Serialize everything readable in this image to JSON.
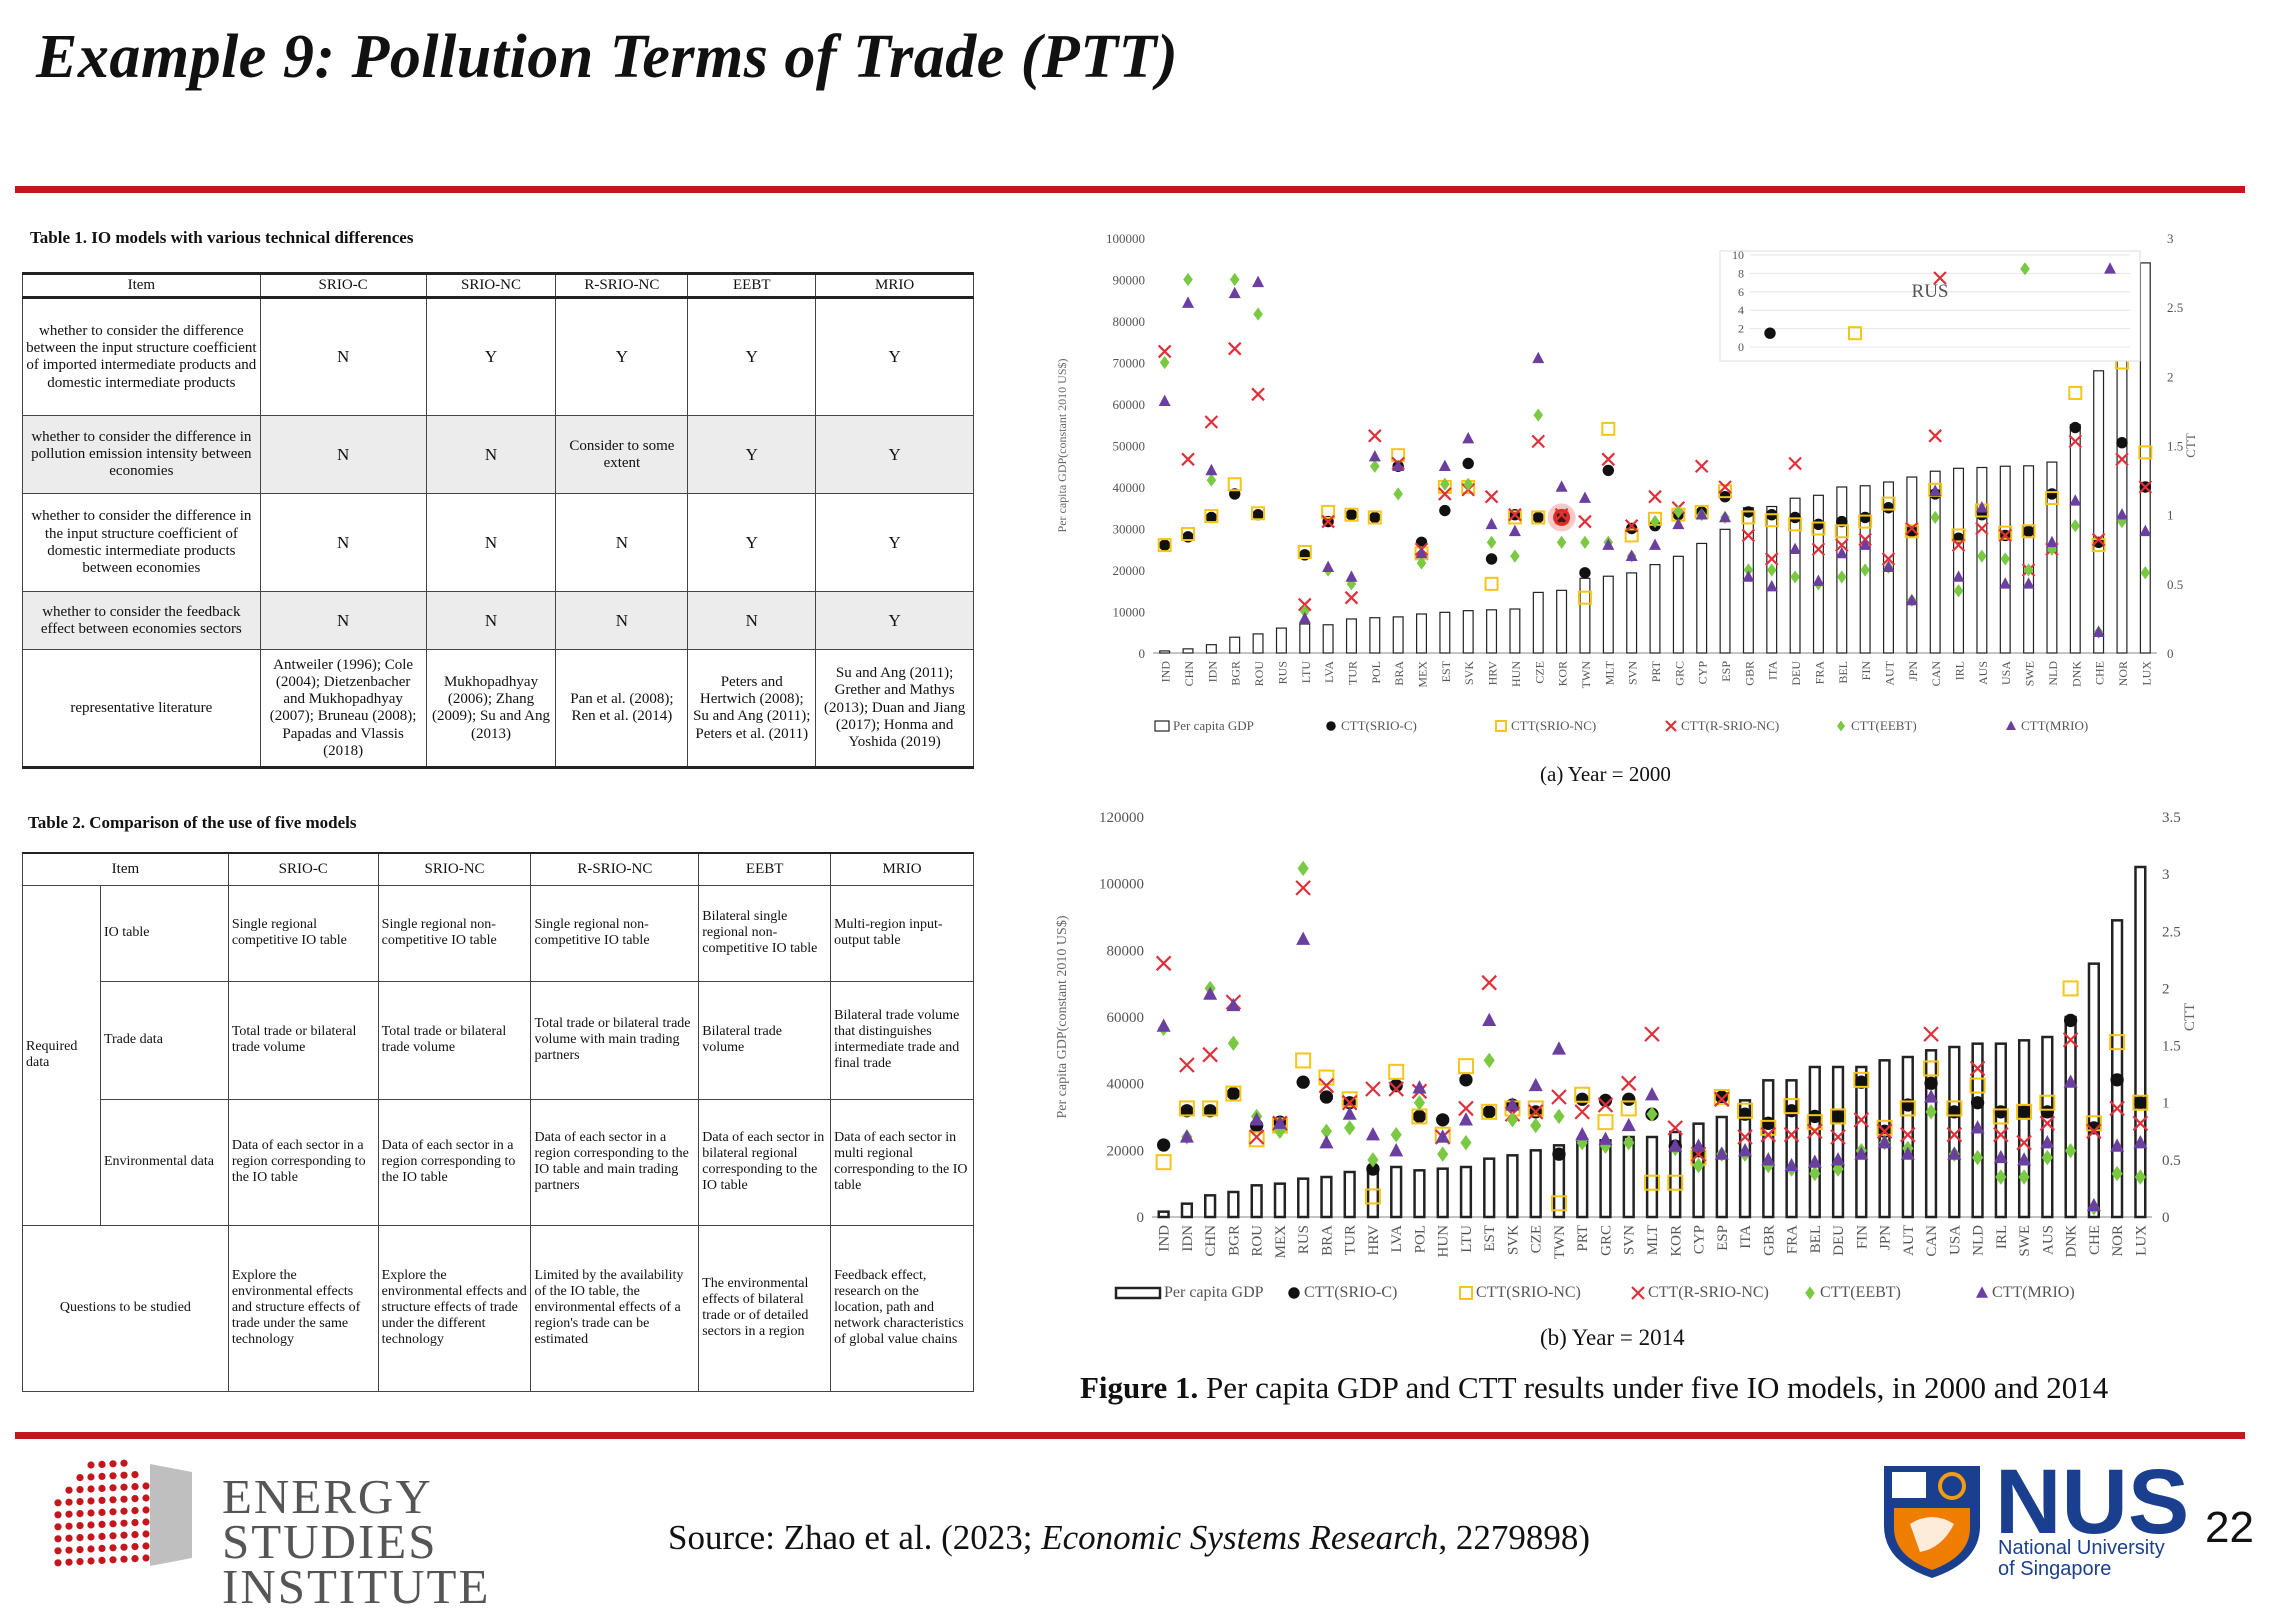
{
  "slide": {
    "title": "Example 9: Pollution Terms of Trade (PTT)",
    "page_number": "22",
    "source_prefix": "Source: Zhao et al. (2023; ",
    "source_journal": "Economic Systems Research",
    "source_suffix": ", 2279898)",
    "colors": {
      "rule": "#c4161c",
      "nus_blue": "#1b3f8f"
    }
  },
  "logos": {
    "esi": "ENERGY STUDIES INSTITUTE",
    "nus": "NUS",
    "nus_subtitle_1": "National University",
    "nus_subtitle_2": "of Singapore"
  },
  "table1": {
    "caption": "Table 1. IO models with various technical differences",
    "headers": [
      "Item",
      "SRIO-C",
      "SRIO-NC",
      "R-SRIO-NC",
      "EEBT",
      "MRIO"
    ],
    "rows": [
      [
        "whether to consider the difference between the input structure coefficient of imported intermediate products and domestic intermediate products",
        "N",
        "Y",
        "Y",
        "Y",
        "Y"
      ],
      [
        "whether to consider the difference in pollution emission intensity between economies",
        "N",
        "N",
        "Consider to some extent",
        "Y",
        "Y"
      ],
      [
        "whether to consider the difference in the input structure coefficient of domestic intermediate products between economies",
        "N",
        "N",
        "N",
        "Y",
        "Y"
      ],
      [
        "whether to consider the feedback effect between economies sectors",
        "N",
        "N",
        "N",
        "N",
        "Y"
      ],
      [
        "representative literature",
        "Antweiler (1996); Cole (2004); Dietzenbacher and Mukhopadhyay (2007); Bruneau (2008); Papadas and Vlassis (2018)",
        "Mukhopadhyay (2006); Zhang (2009); Su and Ang (2013)",
        "Pan et al. (2008); Ren et al. (2014)",
        "Peters and Hertwich (2008); Su and Ang (2011); Peters et al. (2011)",
        "Su and Ang (2011); Grether and Mathys (2013); Duan and Jiang (2017); Honma and Yoshida (2019)"
      ]
    ]
  },
  "table2": {
    "caption": "Table 2. Comparison of the use of five models",
    "headers": [
      "Item",
      "SRIO-C",
      "SRIO-NC",
      "R-SRIO-NC",
      "EEBT",
      "MRIO"
    ],
    "group_label": "Required data",
    "rows": [
      {
        "label": "IO table",
        "cells": [
          "Single regional competitive IO table",
          "Single regional non-competitive IO table",
          "Single regional non-competitive IO table",
          "Bilateral single regional non-competitive IO table",
          "Multi-region input-output table"
        ]
      },
      {
        "label": "Trade data",
        "cells": [
          "Total trade or bilateral trade volume",
          "Total trade or bilateral trade volume",
          "Total trade or bilateral trade volume with main trading partners",
          "Bilateral trade volume",
          "Bilateral trade volume that distinguishes intermediate trade and final trade"
        ]
      },
      {
        "label": "Environmental data",
        "cells": [
          "Data of each sector in a region corresponding to the IO table",
          "Data of each sector in a region corresponding to the IO table",
          "Data of each sector in a region corresponding to the IO table and main trading partners",
          "Data of each sector in bilateral regional corresponding to the IO table",
          "Data of each sector in multi regional corresponding to the IO table"
        ]
      }
    ],
    "questions_label": "Questions to be studied",
    "questions": [
      "Explore the environmental effects and structure effects of trade under the same technology",
      "Explore the environmental effects and structure effects of trade under the different technology",
      "Limited by the availability of the IO table, the environmental effects of a region's trade can be estimated",
      "The environmental effects of bilateral trade or of detailed sectors in a region",
      "Feedback effect, research on the location, path and network characteristics of global value chains"
    ]
  },
  "figure": {
    "caption_bold": "Figure 1.",
    "caption_rest": " Per capita GDP and CTT results under five IO models, in 2000 and 2014",
    "subcaption_a": "(a)  Year = 2000",
    "subcaption_b": "(b)  Year = 2014",
    "inset_label": "RUS"
  },
  "chart_data": [
    {
      "type": "bar",
      "title": "",
      "ylabel": "Per capita GDP(constant 2010 US$)",
      "y2label": "CTT",
      "ylim": [
        0,
        100000
      ],
      "y2lim": [
        0,
        3
      ],
      "yticks": [
        "0",
        "10000",
        "20000",
        "30000",
        "40000",
        "50000",
        "60000",
        "70000",
        "80000",
        "90000",
        "100000"
      ],
      "y2ticks": [
        "0",
        "0.5",
        "1",
        "1.5",
        "2",
        "2.5",
        "3"
      ],
      "categories": [
        "IND",
        "CHN",
        "IDN",
        "BGR",
        "ROU",
        "RUS",
        "LTU",
        "LVA",
        "TUR",
        "POL",
        "BRA",
        "MEX",
        "EST",
        "SVK",
        "HRV",
        "HUN",
        "CZE",
        "KOR",
        "TWN",
        "MLT",
        "SVN",
        "PRT",
        "GRC",
        "CYP",
        "ESP",
        "GBR",
        "ITA",
        "DEU",
        "FRA",
        "BEL",
        "FIN",
        "AUT",
        "JPN",
        "CAN",
        "IRL",
        "AUS",
        "USA",
        "SWE",
        "NLD",
        "DNK",
        "CHE",
        "NOR",
        "LUX"
      ],
      "series": [
        {
          "name": "Per capita GDP",
          "kind": "bar",
          "values": [
            500,
            1000,
            2000,
            3800,
            4600,
            6000,
            7000,
            6800,
            8200,
            8500,
            8700,
            9400,
            9800,
            10200,
            10400,
            10600,
            14600,
            15100,
            18000,
            18500,
            19300,
            21300,
            23300,
            26400,
            29800,
            35000,
            35300,
            37300,
            38000,
            40000,
            40300,
            41200,
            42400,
            43800,
            44500,
            44700,
            45000,
            45100,
            46000,
            55000,
            68000,
            82000,
            94000
          ]
        },
        {
          "name": "CTT(SRIO-C)",
          "kind": "dot",
          "color": "#111111",
          "values": [
            0.78,
            0.84,
            0.98,
            1.15,
            1.0,
            0.0,
            0.71,
            0.95,
            1.0,
            0.98,
            1.35,
            0.8,
            1.03,
            1.37,
            0.68,
            1.0,
            0.98,
            0.98,
            0.58,
            1.32,
            0.9,
            0.92,
            1.0,
            1.02,
            1.13,
            1.02,
            1.0,
            0.98,
            0.93,
            0.95,
            0.98,
            1.05,
            0.88,
            1.15,
            0.83,
            1.0,
            0.85,
            0.88,
            1.15,
            1.63,
            0.8,
            1.52,
            1.2
          ]
        },
        {
          "name": "CTT(SRIO-NC)",
          "kind": "square",
          "color": "#f5c518",
          "values": [
            0.78,
            0.86,
            0.99,
            1.22,
            1.01,
            0.0,
            0.73,
            1.02,
            1.0,
            0.98,
            1.43,
            0.72,
            1.2,
            1.2,
            0.5,
            0.98,
            0.98,
            0.98,
            0.4,
            1.62,
            0.85,
            0.97,
            1.0,
            1.02,
            1.17,
            0.98,
            0.96,
            0.93,
            0.9,
            0.88,
            0.95,
            1.08,
            0.88,
            1.18,
            0.85,
            1.03,
            0.87,
            0.88,
            1.12,
            1.88,
            0.78,
            2.1,
            1.45
          ]
        },
        {
          "name": "CTT(R-SRIO-NC)",
          "kind": "cross",
          "color": "#e0303a",
          "values": [
            2.18,
            1.4,
            1.67,
            2.2,
            1.87,
            0.0,
            0.35,
            0.95,
            0.4,
            1.57,
            1.37,
            0.75,
            1.15,
            1.18,
            1.13,
            1.0,
            1.53,
            1.0,
            0.95,
            1.4,
            0.92,
            1.13,
            1.05,
            1.35,
            1.2,
            0.85,
            0.68,
            1.37,
            0.75,
            0.78,
            0.82,
            0.68,
            0.9,
            1.57,
            0.78,
            0.9,
            0.85,
            0.6,
            0.75,
            1.53,
            0.82,
            1.4,
            1.2
          ]
        },
        {
          "name": "CTT(EEBT)",
          "kind": "diamond",
          "color": "#7ac943",
          "values": [
            2.1,
            2.7,
            1.25,
            2.7,
            2.45,
            0.0,
            0.3,
            0.6,
            0.5,
            1.35,
            1.15,
            0.65,
            1.22,
            1.22,
            0.8,
            0.7,
            1.72,
            0.8,
            0.8,
            0.8,
            0.7,
            0.95,
            1.02,
            1.0,
            0.98,
            0.6,
            0.6,
            0.55,
            0.5,
            0.55,
            0.6,
            0.62,
            0.38,
            0.98,
            0.45,
            0.7,
            0.68,
            0.6,
            0.75,
            0.92,
            0.15,
            0.95,
            0.58
          ]
        },
        {
          "name": "CTT(MRIO)",
          "kind": "triangle",
          "color": "#6b3fa0",
          "values": [
            1.82,
            2.53,
            1.32,
            2.6,
            2.68,
            0.0,
            0.25,
            0.62,
            0.55,
            1.42,
            1.35,
            0.72,
            1.35,
            1.55,
            0.93,
            0.88,
            2.13,
            1.2,
            1.12,
            0.78,
            0.7,
            0.78,
            0.93,
            1.0,
            0.98,
            0.55,
            0.48,
            0.75,
            0.52,
            0.72,
            0.78,
            0.62,
            0.38,
            1.17,
            0.55,
            1.05,
            0.5,
            0.5,
            0.8,
            1.1,
            0.15,
            1.0,
            0.88
          ]
        }
      ],
      "inset": {
        "category": "RUS",
        "ylim": [
          0,
          10
        ],
        "yticks": [
          "0",
          "2",
          "4",
          "6",
          "8",
          "10"
        ],
        "values": {
          "CTT(SRIO-C)": 1.5,
          "CTT(SRIO-NC)": 1.5,
          "CTT(R-SRIO-NC)": 7.5,
          "CTT(EEBT)": 8.5,
          "CTT(MRIO)": 8.5
        }
      }
    },
    {
      "type": "bar",
      "title": "",
      "ylabel": "Per capita GDP(constant 2010 US$)",
      "y2label": "CTT",
      "ylim": [
        0,
        120000
      ],
      "y2lim": [
        0,
        3.5
      ],
      "yticks": [
        "0",
        "20000",
        "40000",
        "60000",
        "80000",
        "100000",
        "120000"
      ],
      "y2ticks": [
        "0",
        "0.5",
        "1",
        "1.5",
        "2",
        "2.5",
        "3",
        "3.5"
      ],
      "categories": [
        "IND",
        "IDN",
        "CHN",
        "BGR",
        "ROU",
        "MEX",
        "RUS",
        "BRA",
        "TUR",
        "HRV",
        "LVA",
        "POL",
        "HUN",
        "LTU",
        "EST",
        "SVK",
        "CZE",
        "TWN",
        "PRT",
        "GRC",
        "SVN",
        "MLT",
        "KOR",
        "CYP",
        "ESP",
        "ITA",
        "GBR",
        "FRA",
        "BEL",
        "DEU",
        "FIN",
        "JPN",
        "AUT",
        "CAN",
        "USA",
        "NLD",
        "IRL",
        "SWE",
        "AUS",
        "DNK",
        "CHE",
        "NOR",
        "LUX"
      ],
      "series": [
        {
          "name": "Per capita GDP",
          "kind": "bar",
          "values": [
            1600,
            4000,
            6500,
            7500,
            9500,
            10000,
            11500,
            12000,
            13500,
            14000,
            15000,
            14000,
            14500,
            15000,
            17500,
            18500,
            20000,
            21500,
            22500,
            23000,
            24000,
            24000,
            25500,
            28000,
            30000,
            35000,
            41000,
            41000,
            45000,
            45000,
            45000,
            47000,
            48000,
            50000,
            51000,
            52000,
            52000,
            53000,
            54000,
            60000,
            76000,
            89000,
            105000
          ]
        },
        {
          "name": "CTT(SRIO-C)",
          "kind": "dot",
          "color": "#111111",
          "values": [
            0.63,
            0.93,
            0.93,
            1.08,
            0.8,
            0.83,
            1.18,
            1.05,
            1.0,
            0.42,
            1.15,
            0.88,
            0.85,
            1.2,
            0.92,
            0.98,
            0.92,
            0.55,
            1.03,
            1.02,
            1.03,
            0.9,
            0.62,
            0.58,
            1.05,
            0.9,
            0.82,
            0.93,
            0.88,
            0.88,
            1.18,
            0.75,
            0.98,
            1.17,
            0.92,
            1.0,
            0.92,
            0.92,
            0.92,
            1.72,
            0.78,
            1.2,
            1.0
          ]
        },
        {
          "name": "CTT(SRIO-NC)",
          "kind": "square",
          "color": "#f5c518",
          "values": [
            0.48,
            0.95,
            0.95,
            1.08,
            0.68,
            0.8,
            1.37,
            1.22,
            1.03,
            0.18,
            1.27,
            0.88,
            0.72,
            1.32,
            0.92,
            0.95,
            0.95,
            0.12,
            1.07,
            0.83,
            0.95,
            0.3,
            0.3,
            0.52,
            1.05,
            0.93,
            0.78,
            0.97,
            0.83,
            0.88,
            1.2,
            0.78,
            0.95,
            1.3,
            0.95,
            1.15,
            0.88,
            0.92,
            1.0,
            2.0,
            0.82,
            1.53,
            1.0
          ]
        },
        {
          "name": "CTT(R-SRIO-NC)",
          "kind": "cross",
          "color": "#e0303a",
          "values": [
            2.22,
            1.33,
            1.42,
            1.88,
            0.7,
            0.82,
            2.88,
            1.15,
            1.0,
            1.12,
            1.12,
            1.1,
            0.7,
            0.95,
            2.05,
            0.9,
            0.92,
            1.05,
            0.92,
            0.98,
            1.17,
            1.6,
            0.78,
            0.55,
            1.03,
            0.7,
            0.72,
            0.72,
            0.75,
            0.7,
            0.85,
            0.75,
            0.72,
            1.6,
            0.72,
            1.3,
            0.72,
            0.65,
            0.82,
            1.55,
            0.75,
            0.95,
            0.82
          ]
        },
        {
          "name": "CTT(EEBT)",
          "kind": "diamond",
          "color": "#7ac943",
          "values": [
            1.65,
            0.7,
            2.0,
            1.52,
            0.88,
            0.75,
            3.05,
            0.75,
            0.78,
            0.5,
            0.72,
            1.0,
            0.55,
            0.65,
            1.37,
            0.85,
            0.8,
            0.88,
            0.65,
            0.62,
            0.65,
            0.9,
            0.6,
            0.45,
            0.55,
            0.55,
            0.45,
            0.42,
            0.38,
            0.42,
            0.58,
            0.65,
            0.6,
            0.92,
            0.55,
            0.52,
            0.35,
            0.35,
            0.52,
            0.58,
            0.08,
            0.38,
            0.35
          ]
        },
        {
          "name": "CTT(MRIO)",
          "kind": "triangle",
          "color": "#6b3fa0",
          "values": [
            1.67,
            0.7,
            1.95,
            1.85,
            0.85,
            0.82,
            2.43,
            0.65,
            0.9,
            0.72,
            0.58,
            1.13,
            0.7,
            0.85,
            1.72,
            0.98,
            1.15,
            1.47,
            0.72,
            0.68,
            0.8,
            1.07,
            0.62,
            0.62,
            0.55,
            0.58,
            0.5,
            0.45,
            0.48,
            0.5,
            0.55,
            0.65,
            0.55,
            1.05,
            0.55,
            0.78,
            0.52,
            0.5,
            0.65,
            1.18,
            0.1,
            0.62,
            0.65
          ]
        }
      ]
    }
  ]
}
